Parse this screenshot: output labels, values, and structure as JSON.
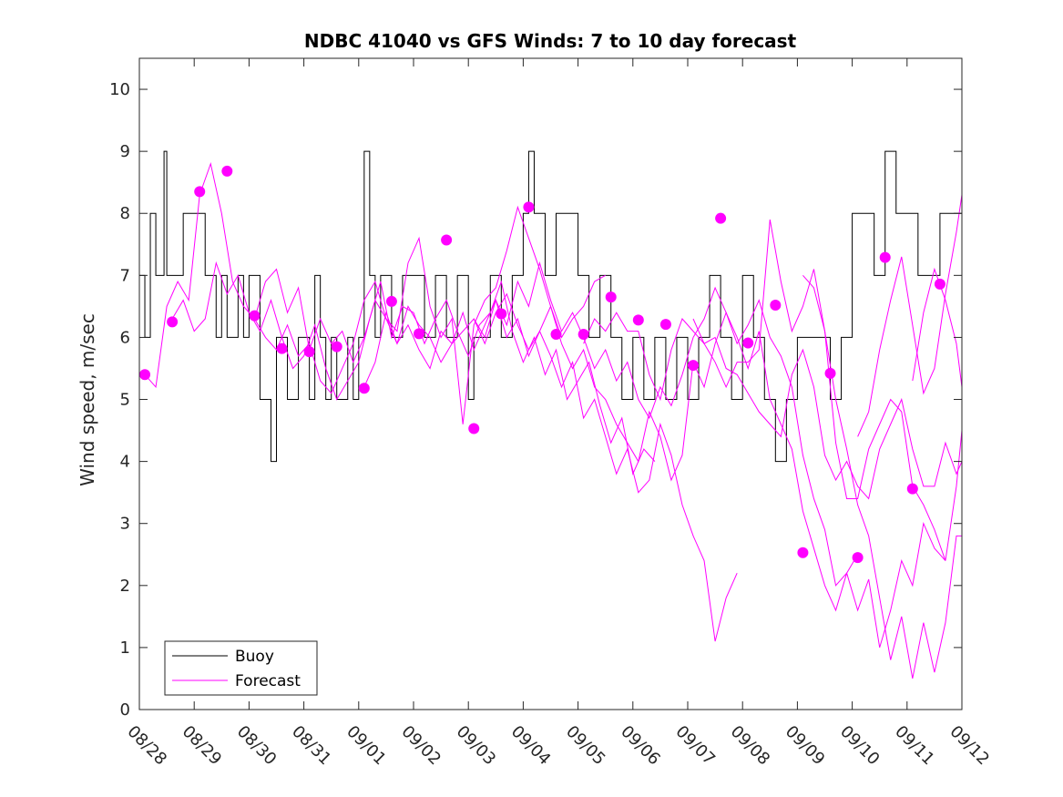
{
  "chart_data": {
    "type": "line",
    "title": "NDBC 41040 vs GFS Winds: 7 to 10 day forecast",
    "xlabel": "",
    "ylabel": "Wind speed, m/sec",
    "xlim": [
      0,
      15
    ],
    "ylim": [
      0,
      10.5
    ],
    "x_ticks": [
      0,
      1,
      2,
      3,
      4,
      5,
      6,
      7,
      8,
      9,
      10,
      11,
      12,
      13,
      14,
      15
    ],
    "x_tick_labels": [
      "08/28",
      "08/29",
      "08/30",
      "08/31",
      "09/01",
      "09/02",
      "09/03",
      "09/04",
      "09/05",
      "09/06",
      "09/07",
      "09/08",
      "09/09",
      "09/10",
      "09/11",
      "09/12"
    ],
    "y_ticks": [
      0,
      1,
      2,
      3,
      4,
      5,
      6,
      7,
      8,
      9,
      10
    ],
    "y_tick_labels": [
      "0",
      "1",
      "2",
      "3",
      "4",
      "5",
      "6",
      "7",
      "8",
      "9",
      "10"
    ],
    "legend": {
      "placement": "bottom-left",
      "entries": [
        "Buoy",
        "Forecast"
      ]
    },
    "colors": {
      "buoy": "#000000",
      "forecast": "#ff00ff"
    },
    "series": [
      {
        "name": "Buoy",
        "style": "step",
        "x": [
          0.0,
          0.1,
          0.2,
          0.3,
          0.45,
          0.5,
          0.8,
          1.0,
          1.2,
          1.4,
          1.5,
          1.6,
          1.8,
          1.9,
          2.0,
          2.2,
          2.4,
          2.5,
          2.7,
          2.9,
          3.0,
          3.1,
          3.2,
          3.3,
          3.4,
          3.5,
          3.6,
          3.7,
          3.8,
          3.9,
          4.0,
          4.1,
          4.2,
          4.3,
          4.4,
          4.6,
          4.8,
          5.0,
          5.2,
          5.4,
          5.6,
          5.8,
          6.0,
          6.1,
          6.2,
          6.4,
          6.6,
          6.8,
          7.0,
          7.1,
          7.2,
          7.4,
          7.6,
          7.8,
          8.0,
          8.2,
          8.4,
          8.6,
          8.8,
          9.0,
          9.2,
          9.4,
          9.6,
          9.8,
          10.0,
          10.2,
          10.4,
          10.6,
          10.8,
          11.0,
          11.2,
          11.4,
          11.6,
          11.8,
          12.0,
          12.2,
          12.4,
          12.6,
          12.8,
          13.0,
          13.2,
          13.4,
          13.6,
          13.8,
          14.0,
          14.2,
          14.4,
          14.6,
          14.8,
          15.0
        ],
        "values": [
          7,
          6,
          8,
          7,
          9,
          7,
          8,
          8,
          7,
          6,
          7,
          6,
          7,
          6,
          7,
          5,
          4,
          6,
          5,
          6,
          6,
          5,
          7,
          6,
          5,
          6,
          5,
          5,
          6,
          5,
          6,
          9,
          7,
          6,
          7,
          6,
          7,
          7,
          6,
          7,
          6,
          7,
          5,
          6,
          6,
          7,
          6,
          7,
          8,
          9,
          8,
          7,
          8,
          8,
          7,
          6,
          7,
          6,
          5,
          6,
          5,
          6,
          5,
          6,
          5,
          6,
          7,
          6,
          5,
          7,
          6,
          5,
          4,
          5,
          6,
          6,
          6,
          5,
          6,
          8,
          8,
          7,
          9,
          8,
          8,
          7,
          7,
          8,
          8,
          6
        ]
      },
      {
        "name": "Forecast",
        "style": "line",
        "members": [
          {
            "x": [
              0.1,
              0.3,
              0.5,
              0.7,
              0.9,
              1.1,
              1.3,
              1.5,
              1.7,
              1.9,
              2.1,
              2.3,
              2.5,
              2.7,
              2.9,
              3.1,
              3.3,
              3.5,
              3.7,
              3.9,
              4.1,
              4.3,
              4.5,
              4.7,
              4.9,
              5.1,
              5.3,
              5.5,
              5.7,
              5.9,
              6.1,
              6.3,
              6.5,
              6.7,
              6.9,
              7.1,
              7.3,
              7.5,
              7.7,
              7.9,
              8.1,
              8.3,
              8.5
            ],
            "values": [
              5.4,
              5.2,
              6.5,
              6.9,
              6.6,
              8.3,
              8.8,
              8.0,
              6.9,
              6.5,
              6.3,
              6.0,
              5.8,
              6.2,
              5.7,
              5.9,
              5.3,
              5.1,
              5.5,
              5.9,
              6.6,
              6.9,
              6.3,
              6.1,
              7.2,
              7.6,
              6.5,
              6.0,
              6.3,
              4.6,
              6.2,
              6.6,
              6.8,
              7.4,
              8.1,
              7.6,
              7.1,
              6.5,
              6.0,
              6.3,
              6.5,
              6.9,
              7.0
            ]
          },
          {
            "x": [
              0.6,
              0.8,
              1.0,
              1.2,
              1.4,
              1.6,
              1.8,
              2.0,
              2.2,
              2.4,
              2.6,
              2.8,
              3.0,
              3.2,
              3.4,
              3.6,
              3.8,
              4.0,
              4.2,
              4.4,
              4.6,
              4.8,
              5.0,
              5.2,
              5.4,
              5.6,
              5.8,
              6.0,
              6.2,
              6.4,
              6.6,
              6.8,
              7.0,
              7.2,
              7.4,
              7.6,
              7.8,
              8.0,
              8.2,
              8.4,
              8.6,
              8.8,
              9.0,
              9.2,
              9.4
            ],
            "values": [
              6.3,
              6.6,
              6.1,
              6.3,
              7.2,
              6.7,
              7.0,
              6.4,
              6.1,
              6.6,
              6.0,
              5.5,
              5.7,
              6.2,
              5.5,
              5.0,
              5.3,
              5.6,
              6.3,
              6.9,
              6.0,
              6.5,
              6.4,
              5.9,
              6.3,
              6.6,
              6.1,
              5.7,
              6.2,
              6.4,
              6.9,
              6.1,
              5.6,
              6.0,
              5.4,
              5.8,
              5.0,
              5.3,
              5.6,
              4.9,
              4.3,
              4.7,
              3.8,
              4.2,
              4.0
            ]
          },
          {
            "x": [
              2.1,
              2.3,
              2.5,
              2.7,
              2.9,
              3.1,
              3.3,
              3.5,
              3.7,
              3.9,
              4.1,
              4.3,
              4.5,
              4.7,
              4.9,
              5.1,
              5.3,
              5.5,
              5.7,
              5.9,
              6.1,
              6.3,
              6.5,
              6.7,
              6.9,
              7.1,
              7.3,
              7.5,
              7.7,
              7.9,
              8.1,
              8.3,
              8.5,
              8.7,
              8.9,
              9.1,
              9.3,
              9.5,
              9.7,
              9.9,
              10.1,
              10.3,
              10.5,
              10.7,
              10.9
            ],
            "values": [
              6.3,
              6.9,
              7.1,
              6.4,
              6.8,
              5.8,
              6.3,
              5.9,
              6.1,
              5.6,
              6.0,
              6.6,
              6.3,
              5.9,
              6.5,
              6.2,
              6.0,
              5.6,
              5.9,
              6.1,
              6.3,
              5.9,
              6.4,
              6.7,
              6.2,
              5.8,
              6.1,
              5.7,
              5.2,
              5.6,
              4.7,
              5.0,
              4.4,
              3.8,
              4.2,
              3.5,
              3.7,
              4.6,
              4.1,
              3.3,
              2.8,
              2.4,
              1.1,
              1.8,
              2.2
            ]
          },
          {
            "x": [
              4.1,
              4.3,
              4.5,
              4.7,
              4.9,
              5.1,
              5.3,
              5.5,
              5.7,
              5.9,
              6.1,
              6.3,
              6.5,
              6.7,
              6.9,
              7.1,
              7.3,
              7.5,
              7.7,
              7.9,
              8.1,
              8.3,
              8.5,
              8.7,
              8.9,
              9.1,
              9.3,
              9.5,
              9.7,
              9.9,
              10.1,
              10.3,
              10.5,
              10.7,
              10.9,
              11.1,
              11.3,
              11.5,
              11.7,
              11.9,
              12.1,
              12.3,
              12.5,
              12.7,
              12.9,
              13.1
            ],
            "values": [
              5.2,
              5.6,
              6.4,
              5.9,
              6.2,
              5.8,
              5.5,
              6.1,
              5.9,
              6.4,
              5.8,
              6.2,
              6.6,
              6.0,
              6.3,
              5.7,
              6.1,
              6.5,
              5.9,
              5.5,
              5.8,
              5.2,
              5.0,
              4.6,
              4.3,
              4.0,
              4.8,
              4.4,
              3.7,
              4.1,
              5.6,
              5.2,
              5.9,
              6.4,
              6.0,
              5.5,
              6.1,
              5.0,
              4.6,
              4.2,
              3.2,
              2.6,
              2.0,
              1.6,
              2.2,
              2.5
            ]
          },
          {
            "x": [
              6.1,
              6.3,
              6.5,
              6.7,
              6.9,
              7.1,
              7.3,
              7.5,
              7.7,
              7.9,
              8.1,
              8.3,
              8.5,
              8.7,
              8.9,
              9.1,
              9.3,
              9.5,
              9.7,
              9.9,
              10.1,
              10.3,
              10.5,
              10.7,
              10.9,
              11.1,
              11.3,
              11.5,
              11.7,
              11.9,
              12.1,
              12.3,
              12.5,
              12.7,
              12.9,
              13.1,
              13.3,
              13.5,
              13.7,
              13.9,
              14.1,
              14.3,
              14.5,
              14.7
            ],
            "values": [
              6.3,
              6.0,
              6.6,
              6.2,
              6.9,
              6.5,
              7.2,
              6.6,
              6.1,
              6.4,
              6.0,
              5.5,
              5.8,
              5.3,
              5.6,
              5.0,
              4.7,
              5.2,
              4.9,
              5.4,
              6.0,
              6.3,
              6.8,
              6.4,
              5.9,
              6.2,
              6.6,
              6.0,
              5.7,
              5.2,
              4.1,
              3.4,
              2.9,
              2.0,
              2.2,
              1.6,
              2.1,
              1.0,
              1.6,
              2.4,
              2.0,
              3.0,
              2.6,
              2.4
            ]
          },
          {
            "x": [
              8.1,
              8.3,
              8.5,
              8.7,
              8.9,
              9.1,
              9.3,
              9.5,
              9.7,
              9.9,
              10.1,
              10.3,
              10.5,
              10.7,
              10.9,
              11.1,
              11.3,
              11.5,
              11.7,
              11.9,
              12.1,
              12.3,
              12.5,
              12.7,
              12.9,
              13.1,
              13.3,
              13.5,
              13.7,
              13.9,
              14.1,
              14.3,
              14.5,
              14.7,
              14.9,
              15.0
            ],
            "values": [
              5.9,
              6.3,
              6.1,
              6.4,
              6.1,
              6.1,
              5.4,
              5.0,
              5.8,
              6.3,
              6.1,
              5.9,
              5.6,
              5.2,
              5.6,
              5.6,
              5.8,
              7.9,
              6.9,
              6.1,
              6.5,
              7.1,
              6.1,
              5.0,
              4.2,
              3.3,
              2.8,
              1.8,
              0.8,
              1.5,
              0.5,
              1.4,
              0.6,
              1.4,
              2.8,
              2.8
            ]
          },
          {
            "x": [
              10.1,
              10.3,
              10.5,
              10.7,
              10.9,
              11.1,
              11.3,
              11.5,
              11.7,
              11.9,
              12.1,
              12.3,
              12.5,
              12.7,
              12.9,
              13.1,
              13.3,
              13.5,
              13.7,
              13.9,
              14.1,
              14.3,
              14.5,
              14.7,
              14.9,
              15.0
            ],
            "values": [
              6.3,
              5.9,
              6.0,
              5.5,
              5.4,
              5.1,
              4.8,
              4.6,
              4.4,
              5.4,
              5.8,
              5.2,
              4.1,
              3.7,
              4.0,
              3.6,
              3.4,
              4.2,
              4.6,
              5.0,
              4.2,
              3.6,
              3.6,
              4.3,
              3.8,
              4.0
            ]
          },
          {
            "x": [
              12.1,
              12.3,
              12.5,
              12.7,
              12.9,
              13.1,
              13.3,
              13.5,
              13.7,
              13.9,
              14.1,
              14.3,
              14.5,
              14.7,
              14.9,
              15.0
            ],
            "values": [
              7.0,
              6.8,
              6.1,
              4.3,
              3.4,
              3.4,
              4.2,
              4.6,
              5.0,
              4.8,
              3.6,
              3.3,
              2.9,
              2.4,
              3.6,
              4.5
            ]
          },
          {
            "x": [
              13.1,
              13.3,
              13.5,
              13.7,
              13.9,
              14.1,
              14.3,
              14.5,
              14.7,
              14.9,
              15.0
            ],
            "values": [
              4.4,
              4.8,
              5.8,
              6.6,
              7.3,
              6.2,
              5.1,
              5.5,
              6.7,
              7.7,
              8.3
            ]
          },
          {
            "x": [
              14.1,
              14.3,
              14.5,
              14.7,
              14.9,
              15.0
            ],
            "values": [
              5.3,
              6.4,
              7.1,
              6.6,
              5.9,
              5.2
            ]
          }
        ],
        "markers": {
          "x": [
            0.1,
            0.6,
            1.1,
            1.6,
            2.1,
            2.6,
            3.1,
            3.6,
            4.1,
            4.6,
            5.1,
            5.6,
            6.1,
            6.6,
            7.1,
            7.6,
            8.1,
            8.6,
            9.1,
            9.6,
            10.1,
            10.6,
            11.1,
            11.6,
            12.1,
            12.6,
            13.1,
            13.6,
            14.1,
            14.6
          ],
          "values": [
            5.4,
            6.25,
            8.35,
            8.68,
            6.35,
            5.82,
            5.77,
            5.85,
            5.18,
            6.58,
            6.06,
            7.57,
            4.53,
            6.38,
            8.1,
            6.05,
            6.05,
            6.65,
            6.28,
            6.21,
            5.55,
            7.92,
            5.91,
            6.52,
            2.53,
            5.42,
            2.45,
            7.29,
            3.56,
            6.86
          ]
        }
      }
    ]
  }
}
